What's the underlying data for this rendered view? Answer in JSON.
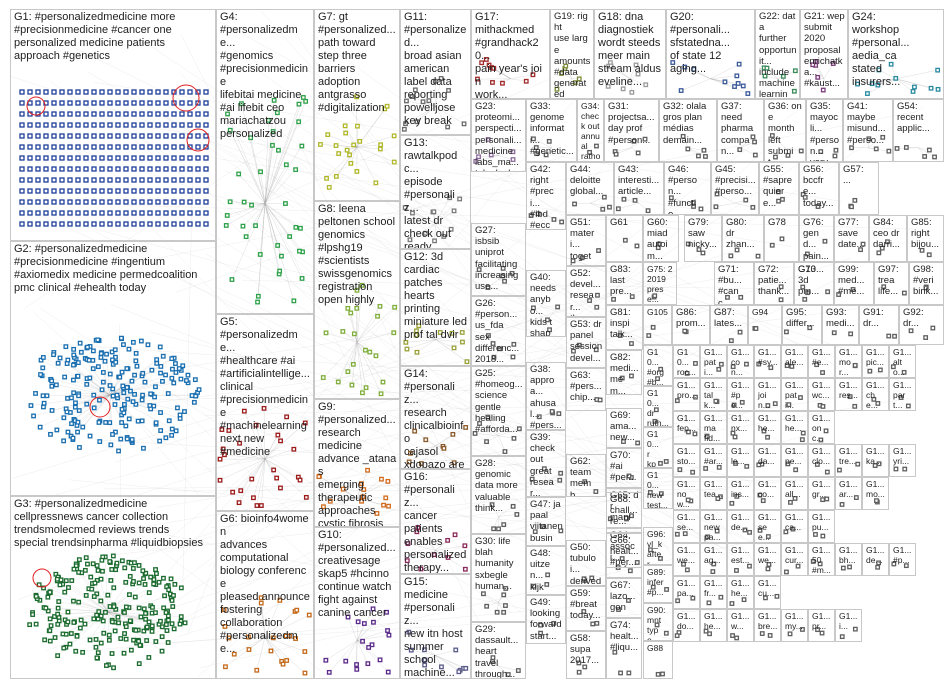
{
  "palette": {
    "G1": "#1f3f9a",
    "G2": "#1a6fb0",
    "G3": "#1b6b2e",
    "G4": "#2ea14a",
    "G5": "#9c1c1c",
    "G6": "#c46a1a",
    "G7": "#b0b82a",
    "G8": "#7fae3a",
    "G9": "#d06b1e",
    "G10": "#5b2a8a",
    "G11": "#6a6a6a",
    "G12": "#9aa23a",
    "G13": "#7a7a7a",
    "G14": "#8a5a2a",
    "G15": "#5a5a8a",
    "G16": "#8a2a5a",
    "G17": "#a02a2a",
    "G18": "#9a9a9a",
    "G19": "#7a8a3a",
    "G20": "#3a5a9a",
    "G21": "#7a3a7a",
    "G22": "#3a8a5a",
    "G23": "#8a6a9a",
    "G24": "#2a8aa0",
    "other": "#5f5f5f",
    "edge": "#9a9a9a",
    "highlight": "#e02020"
  },
  "groups": [
    {
      "id": "G1",
      "label": "G1: #personalizedmedicine more\n#precisionmedicine #cancer one\npersonalized medicine patients\napproach #genetics"
    },
    {
      "id": "G2",
      "label": "G2: #personalizedmedicine\n#precisionmedicine #ingentium\n#axiomedix medicine permedcoalition\npmc clinical #ehealth today"
    },
    {
      "id": "G3",
      "label": "G3: #personalizedmedicine\ncellpressnews cancer collection\ntrendsmolecmed reviews trends\nspecial trendsinpharma #liquidbiopsies"
    },
    {
      "id": "G4",
      "label": "G4:\n#personalizedme...\n#genomics\n#precisionmedicine\nlifebitai medicine\n#ai lifebit ceo\nmariachatzou\npersonalized"
    },
    {
      "id": "G5",
      "label": "G5:\n#personalizedme...\n#healthcare #ai\n#artificialintellige...\nclinical\n#precisionmedicine\n#machinelearning\nnext new\n#medicine"
    },
    {
      "id": "G6",
      "label": "G6: bioinfo4women\nadvances\ncomputational\nbiology conference\npleased announce\nfostering\ncollaboration\n#personalizedme..."
    },
    {
      "id": "G7",
      "label": "G7: gt\n#personalized...\npath toward\nstep three\nbarriers\nadoption\nantgrasso\n#digitalization"
    },
    {
      "id": "G8",
      "label": "G8: leena\npeltonen school\ngenomics\n#lpshg19\n#scientists\nswissgenomics\nregistration\nopen highly"
    },
    {
      "id": "G9",
      "label": "G9:\n#personalized...\nresearch\nmedicine\nadvance _atanas\nemerging\ntherapeutic\napproaches\ncystic fibrosis"
    },
    {
      "id": "G10",
      "label": "G10:\n#personalized...\ncreativesage\nskap5 #hcinno\ncontinue watch\nfight against\ncanine cancer"
    },
    {
      "id": "G11",
      "label": "G11:\n#personalized...\nbroad asian\namerican\nlabel data\nreporting\npowelljose\nkey break"
    },
    {
      "id": "G12",
      "label": "G12: 3d\ncardiac\npatches\nhearts\nprinting\nminiature led\nprof tal dvir"
    },
    {
      "id": "G13",
      "label": "G13:\nrawtalkpodc...\nepisode\n#personaliz...\nlatest dr\ncheck out\nready\npersonal..."
    },
    {
      "id": "G14",
      "label": "G14:\n#personaliz...\nresearch\nclinicalbioinfo\ncajasol\nxdopazo area\nclinical\nbioinformati..."
    },
    {
      "id": "G15",
      "label": "G15:\nmedicine\n#personaliz...\nnew itn host\nsummer\nschool\nmachine..."
    },
    {
      "id": "G16",
      "label": "G16:\n#personaliz...\ncancer\npatients\nenables\npersonalized\ntherapy..."
    },
    {
      "id": "G17",
      "label": "G17:\nmithackmed\n#grandhack20...\npain year's join\nwork..."
    },
    {
      "id": "G18",
      "label": "G18: dna\ndiagnostiek\nwordt steeds\nmeer main\nstream aldus\neveline..."
    },
    {
      "id": "G19",
      "label": "G19: right\nuse large\namounts\n#data\ngenerated\n#healthcare..."
    },
    {
      "id": "G20",
      "label": "G20:\n#personali...\nsfstatedna...\nof state 12\naging..."
    },
    {
      "id": "G21",
      "label": "G21: wep\nsubmit\n2020\nproposal\nenrichatka...\n#kaust..."
    },
    {
      "id": "G22",
      "label": "G22: data\nfurther\nopportunit...\ninclude\nmachine\nlearning..."
    },
    {
      "id": "G23",
      "label": "G23:\nproteomi...\nperspecti...\npersonali...\nmedicine\nlabs_ma...\ntake look..."
    },
    {
      "id": "G24",
      "label": "G24:\nworkshop\n#personal...\naedia_ca\nstated\ninsurers..."
    },
    {
      "id": "G25",
      "label": "G25:\n#homeog...\nscience\ngentle\nhealing\n#afforda..."
    },
    {
      "id": "G26",
      "label": "G26:\n#person...\nus_fda\nsex\ndifferenc...\n2018..."
    },
    {
      "id": "G27",
      "label": "G27:\nisbsib\nuniprot\nfacilitating\nincreasing\nuse..."
    },
    {
      "id": "G28",
      "label": "G28:\ngenomic\ndata more\nvaluable\nthink..."
    },
    {
      "id": "G29",
      "label": "G29:\ndassault...\nheart\ntravel\nthrough..."
    },
    {
      "id": "G30",
      "label": "G30: life\nblah\nhumanity\nsxbegle\nhuman..."
    },
    {
      "id": "G31",
      "label": "G31:\nprojectsa...\nday prof\n#person..."
    },
    {
      "id": "G32",
      "label": "G32: olala\ngros plan\nmédias\ndemain..."
    },
    {
      "id": "G33",
      "label": "G33:\ngenome\ninformati...\n#genetic..."
    },
    {
      "id": "G34",
      "label": "G34:\ncheck out\nannual\nrathon..."
    },
    {
      "id": "G35",
      "label": "G35:\nmayocli...\n#person...\nvery..."
    },
    {
      "id": "G36",
      "label": "G36: one\nmonth\nleft\nsubmit..."
    },
    {
      "id": "G37",
      "label": "G37:\nneed\npharma\ncompan..."
    },
    {
      "id": "G38",
      "label": "G38:\napproa...\nahusal...\n#pers...\n#eculi..."
    },
    {
      "id": "G39",
      "label": "G39:\ncheck\nout\ngreat\nresear..."
    },
    {
      "id": "G40",
      "label": "G40:\nneeds\nanybo...\nkids t\nshape..."
    },
    {
      "id": "G41",
      "label": "G41:\nmaybe\nmisund...\n#perso..."
    },
    {
      "id": "G42",
      "label": "G42:\nright\n#preci...\n#ibd\n#ecco..."
    },
    {
      "id": "G43",
      "label": "G43:\ninteresti...\narticle..."
    },
    {
      "id": "G44",
      "label": "G44:\ndeloitte\nglobal..."
    },
    {
      "id": "G45",
      "label": "G45:\n#precisi...\n#perso..."
    },
    {
      "id": "G46",
      "label": "G46:\n#person...\n#functio..."
    },
    {
      "id": "G47",
      "label": "G47: ja\npaal\nviitanen\nbusine..."
    },
    {
      "id": "G48",
      "label": "G48:\nuitzen...\nkijk\nstraks..."
    },
    {
      "id": "G49",
      "label": "G49:\nlooking\nforward\nstart..."
    },
    {
      "id": "G50",
      "label": "G50:\ntubuloi...\nderived\nhuma..."
    },
    {
      "id": "G51",
      "label": "G51:\nmateri...\ntogeth...\nfluidd..."
    },
    {
      "id": "G52",
      "label": "G52:\ndevel...\nresear...\nthene..."
    },
    {
      "id": "G53",
      "label": "G53: dr\npanel\nsession\ndevel..."
    },
    {
      "id": "G54",
      "label": "G54:\nrecent\napplic..."
    },
    {
      "id": "G55",
      "label": "G55:\n#sapre\nquiere..."
    },
    {
      "id": "G56",
      "label": "G56:\nbccfre...\ntoday..."
    },
    {
      "id": "G57",
      "label": "G57:\n..."
    },
    {
      "id": "G58",
      "label": "G58:\nsupa\n2017..."
    },
    {
      "id": "G59",
      "label": "G59:\n#breat\ntoday..."
    },
    {
      "id": "G60",
      "label": "G60:\nmiad\nautoim..."
    },
    {
      "id": "G61",
      "label": "G61"
    },
    {
      "id": "G62",
      "label": "G62:\nteam\nmemb..."
    },
    {
      "id": "G63",
      "label": "G63:\n#pers...\nchip..."
    },
    {
      "id": "G64",
      "label": "G64:\nassoci...\nprofes..."
    },
    {
      "id": "G65",
      "label": "G65: dr\nmanis...\nbalwa..."
    },
    {
      "id": "G66",
      "label": "G66:\nhealt...\n#per..."
    },
    {
      "id": "G67",
      "label": "G67:\nlazo...\ngong..."
    },
    {
      "id": "G68",
      "label": "G68:\nchall...\nre..."
    },
    {
      "id": "G69",
      "label": "G69:\nama...\nnew..."
    },
    {
      "id": "G70",
      "label": "G70:\n#ai\n#per..."
    },
    {
      "id": "G71",
      "label": "G71:\n#bu...\n#canc..."
    },
    {
      "id": "G72",
      "label": "G72:\npatie...\nthank..."
    },
    {
      "id": "G73",
      "label": "G73"
    },
    {
      "id": "G74",
      "label": "G74:\nhealt...\n#liqu..."
    },
    {
      "id": "G75",
      "label": "G75: 2\n2019\nprese..."
    },
    {
      "id": "G76",
      "label": "G76:\ngend...\npain..."
    },
    {
      "id": "G77",
      "label": "G77:\nsave\ndate..."
    },
    {
      "id": "G78",
      "label": "G78"
    },
    {
      "id": "G79",
      "label": "G79:\nsaw\nnicky..."
    },
    {
      "id": "G80",
      "label": "G80:\ndr\nzhan..."
    },
    {
      "id": "G81",
      "label": "G81:\ninspi\ntalk..."
    },
    {
      "id": "G82",
      "label": "G82:\nmedi...\nmem..."
    },
    {
      "id": "G83",
      "label": "G83:\nlast\npre..."
    },
    {
      "id": "G84",
      "label": "G84:\nceo dr\ndarri..."
    },
    {
      "id": "G85",
      "label": "G85:\nright\nbijou..."
    },
    {
      "id": "G86",
      "label": "G86:\nprom..."
    },
    {
      "id": "G87",
      "label": "G87:\nlates..."
    },
    {
      "id": "G88",
      "label": "G88"
    },
    {
      "id": "G89",
      "label": "G89:\ninfer\n#p..."
    },
    {
      "id": "G90",
      "label": "G90:\nmnt\ntype..."
    },
    {
      "id": "G91",
      "label": "G91:\ndr..."
    },
    {
      "id": "G92",
      "label": "G92:\ndr..."
    },
    {
      "id": "G93",
      "label": "G93:\nmedi..."
    },
    {
      "id": "G94",
      "label": "G94"
    },
    {
      "id": "G95",
      "label": "G95:\ndiffer..."
    },
    {
      "id": "G96",
      "label": "G96:\nvl_k\nafter..."
    },
    {
      "id": "G97",
      "label": "G97:\ntrea\nlife..."
    },
    {
      "id": "G98",
      "label": "G98:\n#veri\nbirik..."
    },
    {
      "id": "G99",
      "label": "G99:\nmed...\n#me..."
    },
    {
      "id": "G100",
      "label": "G10...\n3d\npm..."
    },
    {
      "id": "G101",
      "label": "G10...\n#org\n#b..."
    },
    {
      "id": "G102",
      "label": "G10...\ndr\nruth..."
    },
    {
      "id": "G103",
      "label": "G10...\nr\nkpm..."
    },
    {
      "id": "G104",
      "label": "G10...\nnew\ntest..."
    },
    {
      "id": "G105",
      "label": "G105"
    },
    {
      "id": "G106",
      "label": "G10...\nroc..."
    },
    {
      "id": "G107",
      "label": "G1...\npati..."
    },
    {
      "id": "G108",
      "label": "G1...\ncon..."
    },
    {
      "id": "G109",
      "label": "G1...\n#sy..."
    },
    {
      "id": "G110",
      "label": "G1...\nale..."
    },
    {
      "id": "G111",
      "label": "G1...\n#e..."
    },
    {
      "id": "G112",
      "label": "G1...\nmor..."
    },
    {
      "id": "G113",
      "label": "G1...\npic..."
    },
    {
      "id": "G114",
      "label": "G1...\nalto..."
    },
    {
      "id": "G115",
      "label": "G1...\npro..."
    },
    {
      "id": "G116",
      "label": "G1...\ntalk..."
    },
    {
      "id": "G117",
      "label": "G1...\n#pe..."
    },
    {
      "id": "G118",
      "label": "G1...\njoin..."
    },
    {
      "id": "G119",
      "label": "G1...\npati..."
    },
    {
      "id": "G120",
      "label": "G1...\nwc..."
    },
    {
      "id": "G121",
      "label": "G1...\nres..."
    },
    {
      "id": "G122",
      "label": "G1...\nche..."
    },
    {
      "id": "G123",
      "label": "G1...\npart..."
    },
    {
      "id": "G124",
      "label": "G1...\nfep..."
    },
    {
      "id": "G125",
      "label": "G1...\nma\nfid..."
    },
    {
      "id": "G126",
      "label": "G1...\nnx..."
    },
    {
      "id": "G127",
      "label": "G1...\nhe..."
    },
    {
      "id": "G128",
      "label": "G1...\nhe..."
    },
    {
      "id": "G129",
      "label": "G1...\nonc..."
    },
    {
      "id": "G130",
      "label": "G1...\nsto..."
    },
    {
      "id": "G131",
      "label": "G1...\n#ar..."
    },
    {
      "id": "G132",
      "label": "G1...\nle..."
    },
    {
      "id": "G133",
      "label": "G1...\nda..."
    },
    {
      "id": "G134",
      "label": "G1...\npe..."
    },
    {
      "id": "G135",
      "label": "G1...\nclo..."
    },
    {
      "id": "G136",
      "label": "G1...\ntre..."
    },
    {
      "id": "G137",
      "label": "G1...\nka..."
    },
    {
      "id": "G138",
      "label": "G1...\nyri..."
    },
    {
      "id": "G139",
      "label": "G1...\nnow..."
    },
    {
      "id": "G140",
      "label": "G1...\ntea..."
    },
    {
      "id": "G141",
      "label": "G1...\nins..."
    },
    {
      "id": "G142",
      "label": "G1...\nco..."
    },
    {
      "id": "G143",
      "label": "G1...\nall..."
    },
    {
      "id": "G144",
      "label": "G1...\ngr..."
    },
    {
      "id": "G145",
      "label": "G1...\nar..."
    },
    {
      "id": "G146",
      "label": "G1...\nmo..."
    },
    {
      "id": "G147",
      "label": "G1...\nse..."
    },
    {
      "id": "G148",
      "label": "G1...\nnew\npa..."
    },
    {
      "id": "G149",
      "label": "G1...\nde..."
    },
    {
      "id": "G150",
      "label": "G1...\nsee..."
    },
    {
      "id": "G151",
      "label": "G1...\nca..."
    },
    {
      "id": "G152",
      "label": "G1...\npu..."
    },
    {
      "id": "G153",
      "label": "G1...\nwe..."
    },
    {
      "id": "G154",
      "label": "G1...\nag..."
    },
    {
      "id": "G155",
      "label": "G1...\nest..."
    },
    {
      "id": "G156",
      "label": "G1...\nwe..."
    },
    {
      "id": "G157",
      "label": "G1...\ncur..."
    },
    {
      "id": "G158",
      "label": "G1...\n50\n#m..."
    },
    {
      "id": "G159",
      "label": "G1...\nbh..."
    },
    {
      "id": "G160",
      "label": "G1...\nde..."
    },
    {
      "id": "G161",
      "label": "G1...\n#p..."
    },
    {
      "id": "G162",
      "label": "G1...\npa..."
    },
    {
      "id": "G163",
      "label": "G1...\nfr..."
    },
    {
      "id": "G164",
      "label": "G1...\nhe..."
    },
    {
      "id": "G165",
      "label": "G1...\ncu..."
    },
    {
      "id": "G166",
      "label": "G1...\ndo..."
    },
    {
      "id": "G167",
      "label": "G1...\nhe..."
    },
    {
      "id": "G168",
      "label": "G1...\nw..."
    },
    {
      "id": "G169",
      "label": "G1...\nbre..."
    },
    {
      "id": "G170",
      "label": "G1...\nmy..."
    },
    {
      "id": "G171",
      "label": "G1...\npr..."
    },
    {
      "id": "G172",
      "label": "G1...\ni..."
    }
  ]
}
